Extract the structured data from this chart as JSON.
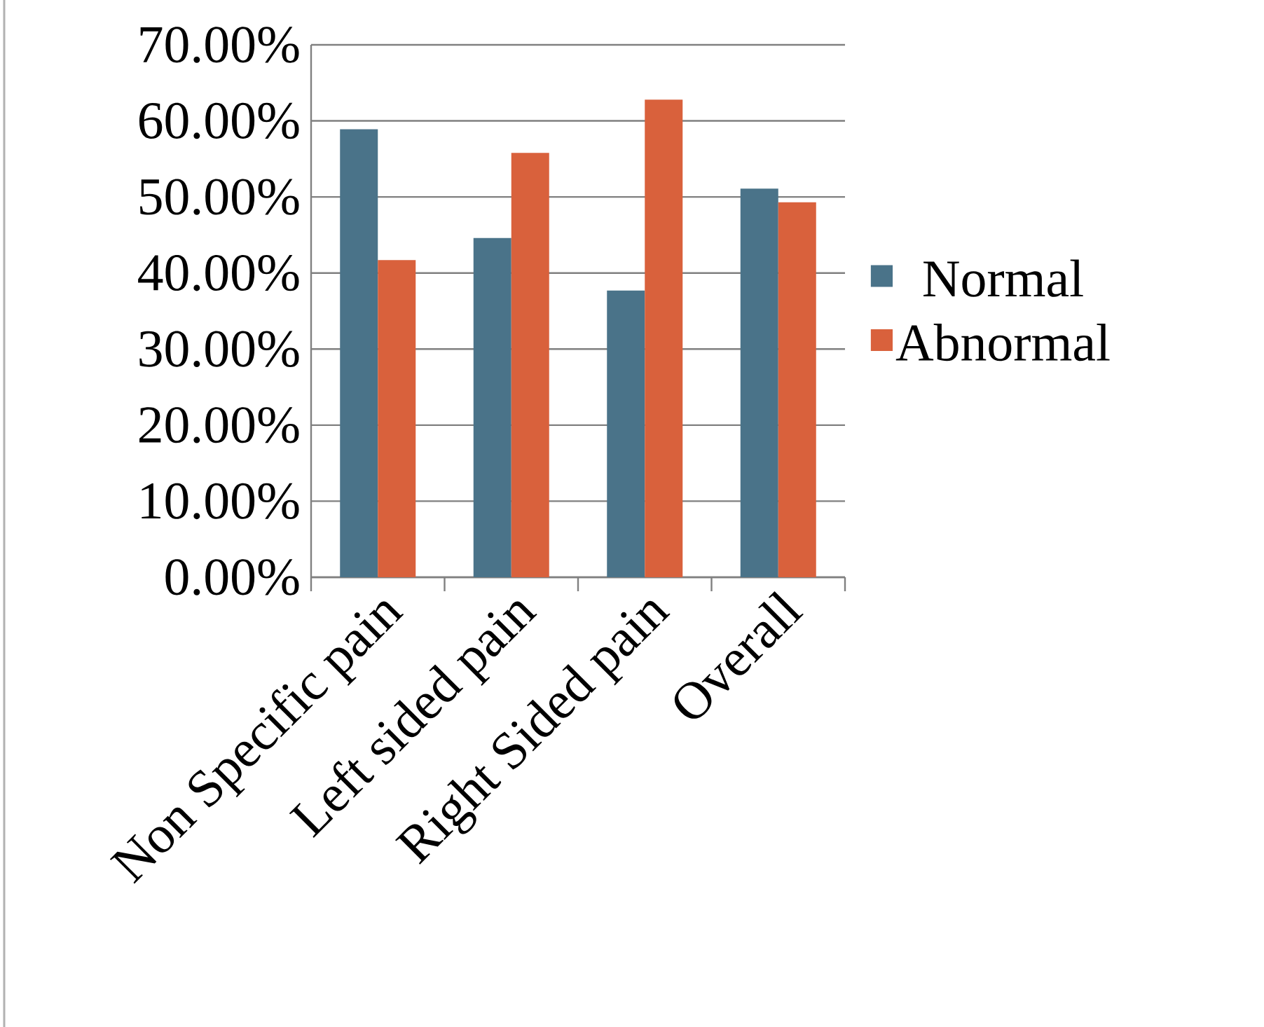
{
  "chart_data": {
    "type": "bar",
    "categories": [
      "Non Specific pain",
      "Left sided pain",
      "Right Sided pain",
      "Overall"
    ],
    "series": [
      {
        "name": "Normal",
        "color": "#4a7389",
        "values": [
          58.9,
          44.6,
          37.7,
          51.1
        ]
      },
      {
        "name": "Abnormal",
        "color": "#d9613c",
        "values": [
          41.7,
          55.8,
          62.8,
          49.3
        ]
      }
    ],
    "ylim": [
      0,
      70
    ],
    "yticks": [
      {
        "value": 0,
        "label": "0.00%"
      },
      {
        "value": 10,
        "label": "10.00%"
      },
      {
        "value": 20,
        "label": "20.00%"
      },
      {
        "value": 30,
        "label": "30.00%"
      },
      {
        "value": 40,
        "label": "40.00%"
      },
      {
        "value": 50,
        "label": "50.00%"
      },
      {
        "value": 60,
        "label": "60.00%"
      },
      {
        "value": 70,
        "label": "70.00%"
      }
    ],
    "grid": "y",
    "legend": "right"
  }
}
